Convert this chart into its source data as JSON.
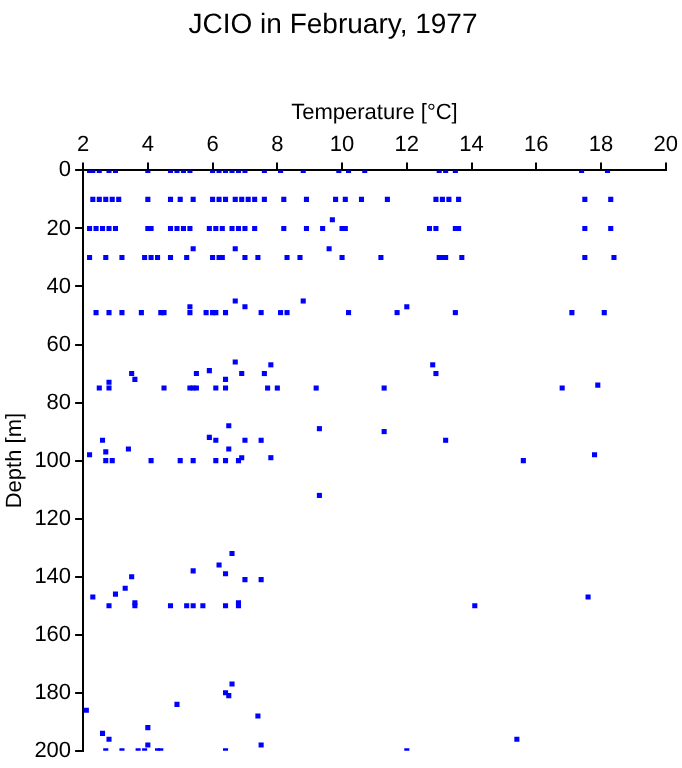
{
  "chart_data": {
    "type": "scatter",
    "title": "JCIO in February, 1977",
    "xlabel": "Temperature [°C]",
    "ylabel": "Depth [m]",
    "xlim": [
      2,
      20
    ],
    "xticks": [
      2,
      4,
      6,
      8,
      10,
      12,
      14,
      16,
      18,
      20
    ],
    "ylim": [
      200,
      0
    ],
    "yticks": [
      0,
      20,
      40,
      60,
      80,
      100,
      120,
      140,
      160,
      180,
      200
    ],
    "grid": false,
    "legend": false,
    "marker": "square",
    "series": [
      {
        "color": "#0000ff",
        "x": [
          2.2,
          2.3,
          2.5,
          2.8,
          3.0,
          4.0,
          4.7,
          4.9,
          5.1,
          5.3,
          6.0,
          6.2,
          6.4,
          6.6,
          6.8,
          7.0,
          7.6,
          8.1,
          8.8,
          9.9,
          10.2,
          10.7,
          13.0,
          13.2,
          13.5,
          17.4,
          18.2,
          2.3,
          2.5,
          2.7,
          2.9,
          3.1,
          4.0,
          4.7,
          5.0,
          5.4,
          6.0,
          6.2,
          6.4,
          6.7,
          6.9,
          7.1,
          7.3,
          7.6,
          8.2,
          8.9,
          9.8,
          10.1,
          10.6,
          11.4,
          12.9,
          13.1,
          13.3,
          13.6,
          17.5,
          18.3,
          2.2,
          2.4,
          2.6,
          2.8,
          3.0,
          4.0,
          4.1,
          4.7,
          4.9,
          5.1,
          5.3,
          5.9,
          6.1,
          6.3,
          6.6,
          6.8,
          7.0,
          7.3,
          8.2,
          8.9,
          9.4,
          9.7,
          10.0,
          10.1,
          12.7,
          12.9,
          13.5,
          13.6,
          17.5,
          18.3,
          2.2,
          2.7,
          3.2,
          3.9,
          4.1,
          4.3,
          4.7,
          5.2,
          6.0,
          6.2,
          6.3,
          7.0,
          7.4,
          8.3,
          8.7,
          10.0,
          11.2,
          13.0,
          13.1,
          13.2,
          13.7,
          17.5,
          18.4,
          5.4,
          6.7,
          9.6,
          2.4,
          2.8,
          3.2,
          3.8,
          4.4,
          4.5,
          5.3,
          5.8,
          6.0,
          6.1,
          6.4,
          7.5,
          8.1,
          8.3,
          8.8,
          10.2,
          11.7,
          12.0,
          13.5,
          17.1,
          18.1,
          5.3,
          6.7,
          7.0,
          3.5,
          3.6,
          5.5,
          5.9,
          6.4,
          6.7,
          6.9,
          7.6,
          7.8,
          12.8,
          12.9,
          2.5,
          2.8,
          2.8,
          4.5,
          5.3,
          5.4,
          5.5,
          6.1,
          6.4,
          7.7,
          8.0,
          9.2,
          11.3,
          16.8,
          17.9,
          6.5,
          9.3,
          11.3,
          2.6,
          5.9,
          6.1,
          6.5,
          7.0,
          7.5,
          13.2,
          3.4,
          2.7,
          2.2,
          7.8,
          6.9,
          17.8,
          2.7,
          2.9,
          4.1,
          5.0,
          5.4,
          6.1,
          6.4,
          6.8,
          15.6,
          9.3,
          6.6,
          6.2,
          6.4,
          5.4,
          7.0,
          7.5,
          3.5,
          3.3,
          3.0,
          2.3,
          17.6,
          3.6,
          2.8,
          3.6,
          4.7,
          5.2,
          5.4,
          5.7,
          6.4,
          6.8,
          6.8,
          14.1,
          2.1,
          2.6,
          2.8,
          4.0,
          4.9,
          6.4,
          6.5,
          6.6,
          7.4,
          15.4,
          2.7,
          3.2,
          3.7,
          3.9,
          4.0,
          4.3,
          4.4,
          6.4,
          7.5,
          12.0
        ],
        "values": [
          0,
          0,
          0,
          0,
          0,
          0,
          0,
          0,
          0,
          0,
          0,
          0,
          0,
          0,
          0,
          0,
          0,
          0,
          0,
          0,
          0,
          0,
          0,
          0,
          0,
          0,
          0,
          10,
          10,
          10,
          10,
          10,
          10,
          10,
          10,
          10,
          10,
          10,
          10,
          10,
          10,
          10,
          10,
          10,
          10,
          10,
          10,
          10,
          10,
          10,
          10,
          10,
          10,
          10,
          10,
          10,
          20,
          20,
          20,
          20,
          20,
          20,
          20,
          20,
          20,
          20,
          20,
          20,
          20,
          20,
          20,
          20,
          20,
          20,
          20,
          20,
          20,
          17,
          20,
          20,
          20,
          20,
          20,
          20,
          20,
          20,
          30,
          30,
          30,
          30,
          30,
          30,
          30,
          30,
          30,
          30,
          30,
          30,
          30,
          30,
          30,
          30,
          30,
          30,
          30,
          30,
          30,
          30,
          30,
          27,
          27,
          27,
          49,
          49,
          49,
          49,
          49,
          49,
          49,
          49,
          49,
          49,
          49,
          49,
          49,
          49,
          45,
          49,
          49,
          47,
          49,
          49,
          49,
          47,
          45,
          47,
          70,
          72,
          70,
          69,
          72,
          66,
          70,
          70,
          67,
          67,
          70,
          75,
          73,
          75,
          75,
          75,
          75,
          75,
          75,
          75,
          75,
          75,
          75,
          75,
          75,
          74,
          88,
          89,
          90,
          93,
          92,
          93,
          96,
          93,
          93,
          93,
          96,
          97,
          98,
          99,
          99,
          98,
          100,
          100,
          100,
          100,
          100,
          100,
          100,
          100,
          100,
          112,
          132,
          136,
          139,
          138,
          141,
          141,
          140,
          144,
          146,
          147,
          147,
          149,
          150,
          150,
          150,
          150,
          150,
          150,
          150,
          149,
          150,
          150,
          186,
          194,
          196,
          192,
          184,
          180,
          181,
          177,
          188,
          196,
          200,
          200,
          200,
          200,
          198,
          200,
          200,
          200,
          198,
          200
        ]
      }
    ]
  }
}
